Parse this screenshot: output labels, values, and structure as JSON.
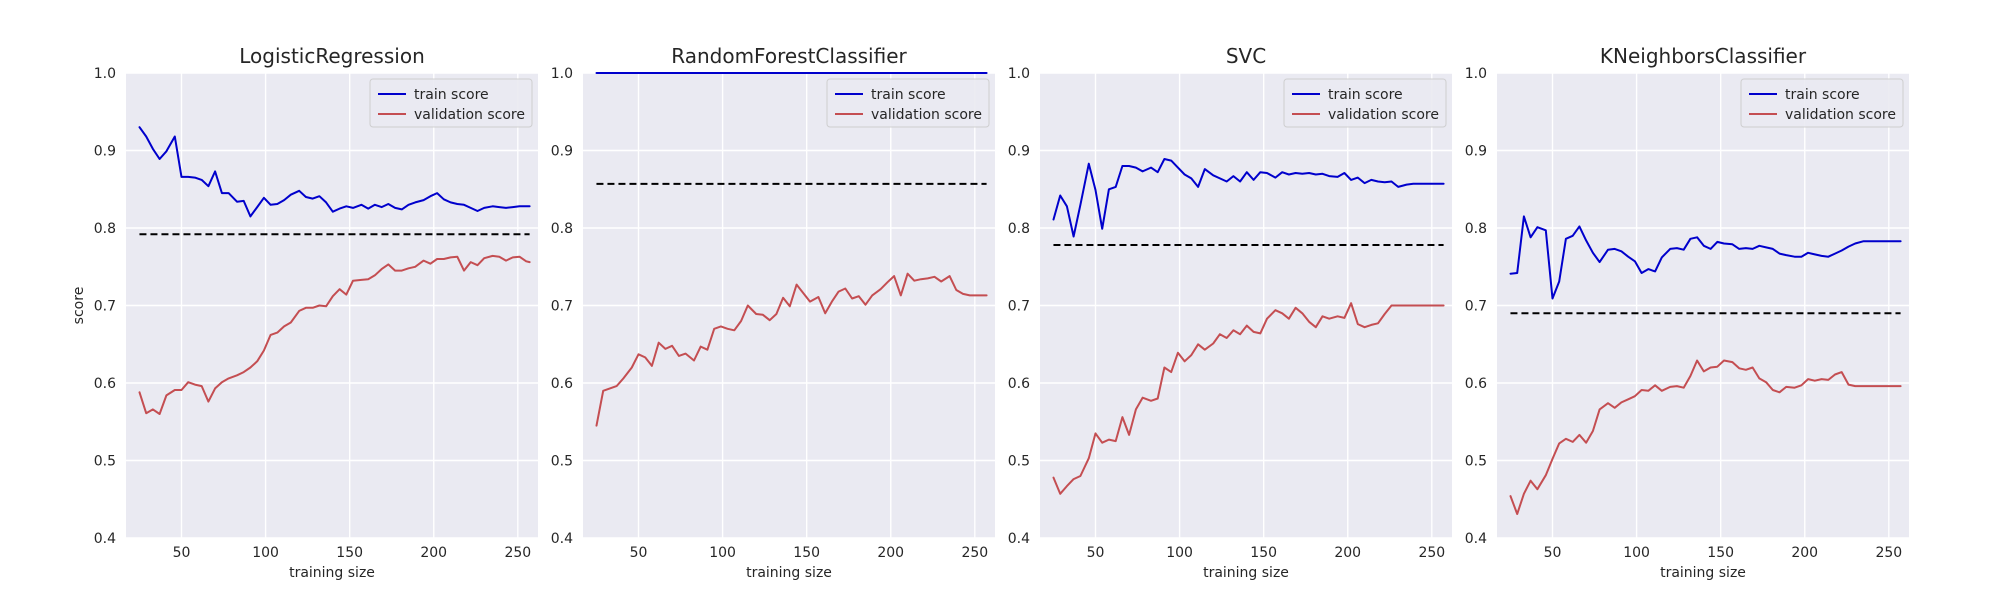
{
  "chart_data": [
    {
      "type": "line",
      "title": "LogisticRegression",
      "xlabel": "training size",
      "ylabel": "score",
      "xlim": [
        17,
        262
      ],
      "ylim": [
        0.4,
        1.0
      ],
      "xticks": [
        "50",
        "100",
        "150",
        "200",
        "250"
      ],
      "xtick_values": [
        50,
        100,
        150,
        200,
        250
      ],
      "yticks": [
        "0.4",
        "0.5",
        "0.6",
        "0.7",
        "0.8",
        "0.9",
        "1.0"
      ],
      "ytick_values": [
        0.4,
        0.5,
        0.6,
        0.7,
        0.8,
        0.9,
        1.0
      ],
      "grid": true,
      "legend": "top-right",
      "baseline": {
        "x": [
          25,
          257
        ],
        "y": 0.792,
        "color": "#000000",
        "style": "dashed"
      },
      "series": [
        {
          "name": "train score",
          "color": "#0000cc",
          "x": [
            25,
            29,
            33,
            37,
            41,
            46,
            50,
            54,
            58,
            62,
            66,
            70,
            74,
            78,
            83,
            87,
            91,
            95,
            99,
            103,
            107,
            111,
            115,
            120,
            124,
            128,
            132,
            136,
            140,
            144,
            148,
            152,
            157,
            161,
            165,
            169,
            173,
            177,
            181,
            185,
            189,
            194,
            198,
            202,
            206,
            210,
            214,
            218,
            222,
            226,
            230,
            235,
            239,
            243,
            247,
            251,
            255,
            257
          ],
          "y": [
            0.93,
            0.918,
            0.902,
            0.889,
            0.899,
            0.918,
            0.866,
            0.866,
            0.865,
            0.862,
            0.854,
            0.873,
            0.845,
            0.845,
            0.834,
            0.835,
            0.815,
            0.827,
            0.839,
            0.83,
            0.831,
            0.836,
            0.843,
            0.848,
            0.84,
            0.838,
            0.841,
            0.833,
            0.821,
            0.825,
            0.828,
            0.826,
            0.83,
            0.825,
            0.83,
            0.827,
            0.831,
            0.826,
            0.824,
            0.83,
            0.833,
            0.836,
            0.841,
            0.845,
            0.837,
            0.833,
            0.831,
            0.83,
            0.826,
            0.822,
            0.826,
            0.828,
            0.827,
            0.826,
            0.827,
            0.828,
            0.828,
            0.828
          ]
        },
        {
          "name": "validation score",
          "color": "#c44e52",
          "x": [
            25,
            29,
            33,
            37,
            41,
            46,
            50,
            54,
            58,
            62,
            66,
            70,
            74,
            78,
            83,
            87,
            91,
            95,
            99,
            103,
            107,
            111,
            115,
            120,
            124,
            128,
            132,
            136,
            140,
            144,
            148,
            152,
            157,
            161,
            165,
            169,
            173,
            177,
            181,
            185,
            189,
            194,
            198,
            202,
            206,
            210,
            214,
            218,
            222,
            226,
            230,
            235,
            239,
            243,
            247,
            251,
            255,
            257
          ],
          "y": [
            0.588,
            0.561,
            0.566,
            0.56,
            0.584,
            0.591,
            0.591,
            0.601,
            0.598,
            0.596,
            0.576,
            0.593,
            0.601,
            0.606,
            0.61,
            0.614,
            0.62,
            0.628,
            0.642,
            0.662,
            0.665,
            0.673,
            0.678,
            0.693,
            0.697,
            0.697,
            0.7,
            0.699,
            0.712,
            0.721,
            0.714,
            0.732,
            0.733,
            0.734,
            0.739,
            0.747,
            0.753,
            0.745,
            0.745,
            0.748,
            0.75,
            0.758,
            0.754,
            0.76,
            0.76,
            0.762,
            0.763,
            0.745,
            0.756,
            0.752,
            0.761,
            0.764,
            0.763,
            0.758,
            0.762,
            0.763,
            0.757,
            0.756
          ]
        }
      ]
    },
    {
      "type": "line",
      "title": "RandomForestClassifier",
      "xlabel": "training size",
      "ylabel": "",
      "xlim": [
        17,
        262
      ],
      "ylim": [
        0.4,
        1.0
      ],
      "xticks": [
        "50",
        "100",
        "150",
        "200",
        "250"
      ],
      "xtick_values": [
        50,
        100,
        150,
        200,
        250
      ],
      "yticks": [
        "0.4",
        "0.5",
        "0.6",
        "0.7",
        "0.8",
        "0.9",
        "1.0"
      ],
      "ytick_values": [
        0.4,
        0.5,
        0.6,
        0.7,
        0.8,
        0.9,
        1.0
      ],
      "grid": true,
      "legend": "top-right",
      "baseline": {
        "x": [
          25,
          257
        ],
        "y": 0.857,
        "color": "#000000",
        "style": "dashed"
      },
      "series": [
        {
          "name": "train score",
          "color": "#0000cc",
          "x": [
            25,
            257
          ],
          "y": [
            1.0,
            1.0
          ]
        },
        {
          "name": "validation score",
          "color": "#c44e52",
          "x": [
            25,
            29,
            33,
            37,
            41,
            46,
            50,
            54,
            58,
            62,
            66,
            70,
            74,
            78,
            83,
            87,
            91,
            95,
            99,
            103,
            107,
            111,
            115,
            120,
            124,
            128,
            132,
            136,
            140,
            144,
            148,
            152,
            157,
            161,
            165,
            169,
            173,
            177,
            181,
            185,
            189,
            194,
            198,
            202,
            206,
            210,
            214,
            218,
            222,
            226,
            230,
            235,
            239,
            243,
            247,
            251,
            255,
            257
          ],
          "y": [
            0.545,
            0.59,
            0.593,
            0.596,
            0.606,
            0.62,
            0.637,
            0.633,
            0.622,
            0.652,
            0.644,
            0.648,
            0.635,
            0.638,
            0.629,
            0.647,
            0.643,
            0.67,
            0.673,
            0.67,
            0.668,
            0.68,
            0.7,
            0.689,
            0.688,
            0.681,
            0.689,
            0.71,
            0.699,
            0.727,
            0.716,
            0.705,
            0.711,
            0.69,
            0.705,
            0.718,
            0.722,
            0.709,
            0.712,
            0.701,
            0.713,
            0.721,
            0.73,
            0.738,
            0.713,
            0.741,
            0.732,
            0.734,
            0.735,
            0.737,
            0.731,
            0.738,
            0.72,
            0.715,
            0.713,
            0.713,
            0.713,
            0.713
          ]
        }
      ]
    },
    {
      "type": "line",
      "title": "SVC",
      "xlabel": "training size",
      "ylabel": "",
      "xlim": [
        17,
        262
      ],
      "ylim": [
        0.4,
        1.0
      ],
      "xticks": [
        "50",
        "100",
        "150",
        "200",
        "250"
      ],
      "xtick_values": [
        50,
        100,
        150,
        200,
        250
      ],
      "yticks": [
        "0.4",
        "0.5",
        "0.6",
        "0.7",
        "0.8",
        "0.9",
        "1.0"
      ],
      "ytick_values": [
        0.4,
        0.5,
        0.6,
        0.7,
        0.8,
        0.9,
        1.0
      ],
      "grid": true,
      "legend": "top-right",
      "baseline": {
        "x": [
          25,
          257
        ],
        "y": 0.778,
        "color": "#000000",
        "style": "dashed"
      },
      "series": [
        {
          "name": "train score",
          "color": "#0000cc",
          "x": [
            25,
            29,
            33,
            37,
            41,
            46,
            50,
            54,
            58,
            62,
            66,
            70,
            74,
            78,
            83,
            87,
            91,
            95,
            99,
            103,
            107,
            111,
            115,
            120,
            124,
            128,
            132,
            136,
            140,
            144,
            148,
            152,
            157,
            161,
            165,
            169,
            173,
            177,
            181,
            185,
            189,
            194,
            198,
            202,
            206,
            210,
            214,
            218,
            222,
            226,
            230,
            235,
            239,
            243,
            247,
            251,
            255,
            257
          ],
          "y": [
            0.811,
            0.842,
            0.828,
            0.789,
            0.83,
            0.883,
            0.849,
            0.799,
            0.85,
            0.853,
            0.88,
            0.88,
            0.878,
            0.873,
            0.878,
            0.872,
            0.889,
            0.887,
            0.878,
            0.869,
            0.864,
            0.853,
            0.876,
            0.868,
            0.864,
            0.86,
            0.867,
            0.86,
            0.872,
            0.862,
            0.872,
            0.871,
            0.865,
            0.872,
            0.869,
            0.871,
            0.87,
            0.871,
            0.869,
            0.87,
            0.867,
            0.866,
            0.871,
            0.862,
            0.865,
            0.858,
            0.862,
            0.86,
            0.859,
            0.86,
            0.853,
            0.856,
            0.857,
            0.857,
            0.857,
            0.857,
            0.857,
            0.857
          ]
        },
        {
          "name": "validation score",
          "color": "#c44e52",
          "x": [
            25,
            29,
            33,
            37,
            41,
            46,
            50,
            54,
            58,
            62,
            66,
            70,
            74,
            78,
            83,
            87,
            91,
            95,
            99,
            103,
            107,
            111,
            115,
            120,
            124,
            128,
            132,
            136,
            140,
            144,
            148,
            152,
            157,
            161,
            165,
            169,
            173,
            177,
            181,
            185,
            189,
            194,
            198,
            202,
            206,
            210,
            214,
            218,
            222,
            226,
            230,
            235,
            239,
            243,
            247,
            251,
            255,
            257
          ],
          "y": [
            0.478,
            0.457,
            0.467,
            0.476,
            0.48,
            0.503,
            0.535,
            0.523,
            0.527,
            0.525,
            0.556,
            0.533,
            0.566,
            0.581,
            0.577,
            0.58,
            0.62,
            0.614,
            0.639,
            0.628,
            0.636,
            0.65,
            0.643,
            0.651,
            0.663,
            0.658,
            0.668,
            0.663,
            0.674,
            0.666,
            0.664,
            0.683,
            0.694,
            0.69,
            0.683,
            0.697,
            0.69,
            0.679,
            0.672,
            0.686,
            0.683,
            0.686,
            0.684,
            0.703,
            0.676,
            0.672,
            0.675,
            0.677,
            0.689,
            0.7,
            0.7,
            0.7,
            0.7,
            0.7,
            0.7,
            0.7,
            0.7,
            0.7
          ]
        }
      ]
    },
    {
      "type": "line",
      "title": "KNeighborsClassifier",
      "xlabel": "training size",
      "ylabel": "",
      "xlim": [
        17,
        262
      ],
      "ylim": [
        0.4,
        1.0
      ],
      "xticks": [
        "50",
        "100",
        "150",
        "200",
        "250"
      ],
      "xtick_values": [
        50,
        100,
        150,
        200,
        250
      ],
      "yticks": [
        "0.4",
        "0.5",
        "0.6",
        "0.7",
        "0.8",
        "0.9",
        "1.0"
      ],
      "ytick_values": [
        0.4,
        0.5,
        0.6,
        0.7,
        0.8,
        0.9,
        1.0
      ],
      "grid": true,
      "legend": "top-right",
      "baseline": {
        "x": [
          25,
          257
        ],
        "y": 0.69,
        "color": "#000000",
        "style": "dashed"
      },
      "series": [
        {
          "name": "train score",
          "color": "#0000cc",
          "x": [
            25,
            29,
            33,
            37,
            41,
            46,
            50,
            54,
            58,
            62,
            66,
            70,
            74,
            78,
            83,
            87,
            91,
            95,
            99,
            103,
            107,
            111,
            115,
            120,
            124,
            128,
            132,
            136,
            140,
            144,
            148,
            152,
            157,
            161,
            165,
            169,
            173,
            177,
            181,
            185,
            189,
            194,
            198,
            202,
            206,
            210,
            214,
            218,
            222,
            226,
            230,
            235,
            239,
            243,
            247,
            251,
            255,
            257
          ],
          "y": [
            0.741,
            0.742,
            0.815,
            0.788,
            0.801,
            0.797,
            0.709,
            0.731,
            0.786,
            0.79,
            0.802,
            0.784,
            0.768,
            0.756,
            0.772,
            0.773,
            0.77,
            0.763,
            0.757,
            0.742,
            0.747,
            0.744,
            0.762,
            0.773,
            0.774,
            0.772,
            0.786,
            0.788,
            0.777,
            0.773,
            0.782,
            0.78,
            0.779,
            0.773,
            0.774,
            0.773,
            0.777,
            0.775,
            0.773,
            0.767,
            0.765,
            0.763,
            0.763,
            0.768,
            0.766,
            0.764,
            0.763,
            0.767,
            0.771,
            0.776,
            0.78,
            0.783,
            0.783,
            0.783,
            0.783,
            0.783,
            0.783,
            0.783
          ]
        },
        {
          "name": "validation score",
          "color": "#c44e52",
          "x": [
            25,
            29,
            33,
            37,
            41,
            46,
            50,
            54,
            58,
            62,
            66,
            70,
            74,
            78,
            83,
            87,
            91,
            95,
            99,
            103,
            107,
            111,
            115,
            120,
            124,
            128,
            132,
            136,
            140,
            144,
            148,
            152,
            157,
            161,
            165,
            169,
            173,
            177,
            181,
            185,
            189,
            194,
            198,
            202,
            206,
            210,
            214,
            218,
            222,
            226,
            230,
            235,
            239,
            243,
            247,
            251,
            255,
            257
          ],
          "y": [
            0.454,
            0.431,
            0.457,
            0.474,
            0.463,
            0.481,
            0.502,
            0.522,
            0.528,
            0.524,
            0.533,
            0.523,
            0.538,
            0.566,
            0.574,
            0.568,
            0.575,
            0.579,
            0.583,
            0.591,
            0.59,
            0.597,
            0.59,
            0.595,
            0.596,
            0.594,
            0.609,
            0.629,
            0.615,
            0.62,
            0.621,
            0.629,
            0.627,
            0.619,
            0.617,
            0.62,
            0.606,
            0.601,
            0.591,
            0.588,
            0.595,
            0.594,
            0.597,
            0.605,
            0.603,
            0.605,
            0.604,
            0.611,
            0.614,
            0.598,
            0.596,
            0.596,
            0.596,
            0.596,
            0.596,
            0.596,
            0.596,
            0.596
          ]
        }
      ]
    }
  ]
}
